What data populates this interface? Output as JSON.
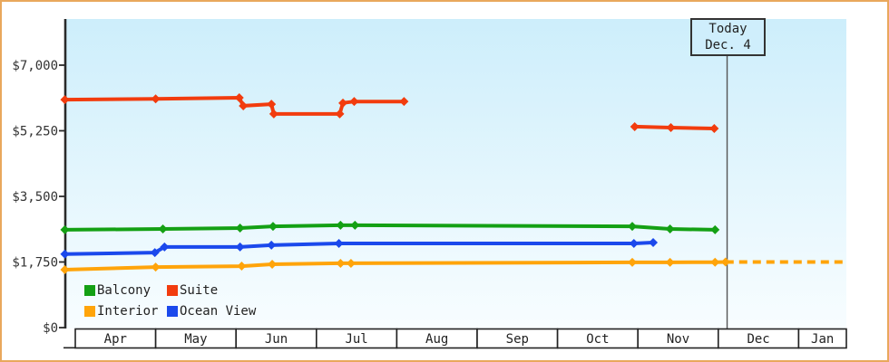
{
  "window": {
    "frame_border_color": "#e9a85c",
    "background_color": "#ffffff"
  },
  "chart_data": {
    "type": "line",
    "description": "Cruise cabin price history by category over time",
    "categories": [
      "Apr",
      "May",
      "Jun",
      "Jul",
      "Aug",
      "Sep",
      "Oct",
      "Nov",
      "Dec",
      "Jan"
    ],
    "y_ticks": [
      {
        "label": "$0",
        "value": 0
      },
      {
        "label": "$1,750",
        "value": 1750
      },
      {
        "label": "$3,500",
        "value": 3500
      },
      {
        "label": "$5,250",
        "value": 5250
      },
      {
        "label": "$7,000",
        "value": 7000
      }
    ],
    "ylim": [
      0,
      8250
    ],
    "grid": "off",
    "legend_position": "bottom-left-inside",
    "plot_background": {
      "top": "#cdeefb",
      "bottom": "#f8fdff"
    },
    "series": [
      {
        "name": "Suite",
        "color": "#f23c0e",
        "segments": [
          [
            [
              -0.13,
              6080
            ],
            [
              1.0,
              6100
            ],
            [
              2.04,
              6130
            ],
            [
              2.09,
              5915
            ],
            [
              2.44,
              5960
            ],
            [
              2.47,
              5700
            ],
            [
              3.29,
              5700
            ],
            [
              3.33,
              5990
            ],
            [
              3.47,
              6030
            ],
            [
              4.09,
              6030
            ]
          ],
          [
            [
              6.96,
              5360
            ],
            [
              7.41,
              5335
            ],
            [
              7.95,
              5310
            ]
          ]
        ]
      },
      {
        "name": "Balcony",
        "color": "#14a014",
        "segments": [
          [
            [
              -0.13,
              2610
            ],
            [
              1.09,
              2630
            ],
            [
              2.05,
              2655
            ],
            [
              2.46,
              2700
            ],
            [
              3.3,
              2730
            ],
            [
              3.48,
              2730
            ],
            [
              6.93,
              2700
            ],
            [
              7.4,
              2630
            ],
            [
              7.96,
              2610
            ]
          ]
        ]
      },
      {
        "name": "Ocean View",
        "color": "#1b49ec",
        "segments": [
          [
            [
              -0.13,
              1960
            ],
            [
              0.99,
              2000
            ],
            [
              1.11,
              2150
            ],
            [
              2.05,
              2150
            ],
            [
              2.44,
              2200
            ],
            [
              3.28,
              2245
            ],
            [
              6.95,
              2245
            ],
            [
              7.19,
              2270
            ]
          ]
        ]
      },
      {
        "name": "Interior",
        "color": "#ffa40a",
        "segments": [
          [
            [
              -0.13,
              1545
            ],
            [
              1.0,
              1615
            ],
            [
              2.07,
              1640
            ],
            [
              2.45,
              1690
            ],
            [
              3.3,
              1715
            ],
            [
              3.43,
              1715
            ],
            [
              6.93,
              1740
            ],
            [
              7.4,
              1740
            ],
            [
              7.96,
              1745
            ],
            [
              8.09,
              1750
            ]
          ]
        ],
        "projection_dashed": [
          [
            8.09,
            1750
          ],
          [
            9.6,
            1750
          ]
        ]
      }
    ],
    "today": {
      "line1": "Today",
      "line2": "Dec. 4",
      "month_position": 8.11
    },
    "legend": [
      {
        "label": "Balcony",
        "color": "#14a014"
      },
      {
        "label": "Suite",
        "color": "#f23c0e"
      },
      {
        "label": "Interior",
        "color": "#ffa40a"
      },
      {
        "label": "Ocean View",
        "color": "#1b49ec"
      }
    ]
  }
}
